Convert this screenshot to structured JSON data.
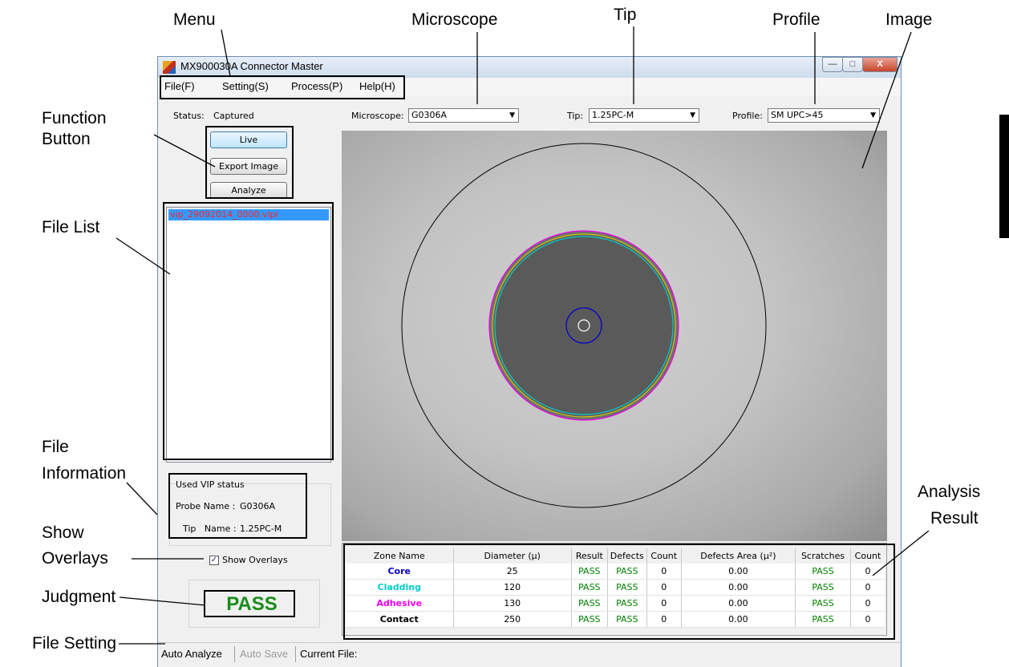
{
  "callouts": {
    "menu": "Menu",
    "microscope": "Microscope",
    "tip": "Tip",
    "profile": "Profile",
    "image": "Image",
    "function_button_1": "Function",
    "function_button_2": "Button",
    "file_list": "File List",
    "file_information_1": "File",
    "file_information_2": "Information",
    "show_overlays_1": "Show",
    "show_overlays_2": "Overlays",
    "judgment": "Judgment",
    "file_setting": "File Setting",
    "analysis_result_1": "Analysis",
    "analysis_result_2": "Result"
  },
  "window": {
    "title": "MX900030A Connector Master",
    "minimize_glyph": "—",
    "maximize_glyph": "□",
    "close_glyph": "X"
  },
  "menu": {
    "file": "File(F)",
    "setting": "Setting(S)",
    "process": "Process(P)",
    "help": "Help(H)"
  },
  "status": {
    "label": "Status:",
    "value": "Captured"
  },
  "microscope": {
    "label": "Microscope:",
    "value": "G0306A"
  },
  "tip": {
    "label": "Tip:",
    "value": "1.25PC-M"
  },
  "profile": {
    "label": "Profile:",
    "value": "SM UPC>45"
  },
  "buttons": {
    "live": "Live",
    "export_image": "Export Image",
    "analyze": "Analyze"
  },
  "file_list": {
    "items": [
      "vip_29092014_0000.vipi"
    ]
  },
  "file_info": {
    "group_title": "Used VIP status",
    "probe_label": "Probe Name :",
    "probe_value": "G0306A",
    "tip_label": "Tip   Name :",
    "tip_value": "1.25PC-M"
  },
  "show_overlays": {
    "label": "Show Overlays",
    "checked": true,
    "check_glyph": "✓"
  },
  "judgment": "PASS",
  "results": {
    "headers": [
      "Zone Name",
      "Diameter (μ)",
      "Result",
      "Defects",
      "Count",
      "Defects Area (μ²)",
      "Scratches",
      "Count"
    ],
    "rows": [
      {
        "zone": "Core",
        "diameter": "25",
        "result": "PASS",
        "defects": "PASS",
        "count": "0",
        "area": "0.00",
        "scratches": "PASS",
        "scount": "0",
        "color": "#0000cc"
      },
      {
        "zone": "Cladding",
        "diameter": "120",
        "result": "PASS",
        "defects": "PASS",
        "count": "0",
        "area": "0.00",
        "scratches": "PASS",
        "scount": "0",
        "color": "#00cccc"
      },
      {
        "zone": "Adhesive",
        "diameter": "130",
        "result": "PASS",
        "defects": "PASS",
        "count": "0",
        "area": "0.00",
        "scratches": "PASS",
        "scount": "0",
        "color": "#ee00ee"
      },
      {
        "zone": "Contact",
        "diameter": "250",
        "result": "PASS",
        "defects": "PASS",
        "count": "0",
        "area": "0.00",
        "scratches": "PASS",
        "scount": "0",
        "color": "#000000"
      }
    ]
  },
  "statusbar": {
    "auto_analyze": "Auto Analyze",
    "auto_save": "Auto Save",
    "current_file": "Current File:"
  },
  "colors": {
    "core": "#0000cc",
    "cladding": "#00cccc",
    "adhesive": "#ee00ee",
    "contact": "#000000",
    "pass": "#1a8c1a",
    "selection": "#3399ff"
  }
}
